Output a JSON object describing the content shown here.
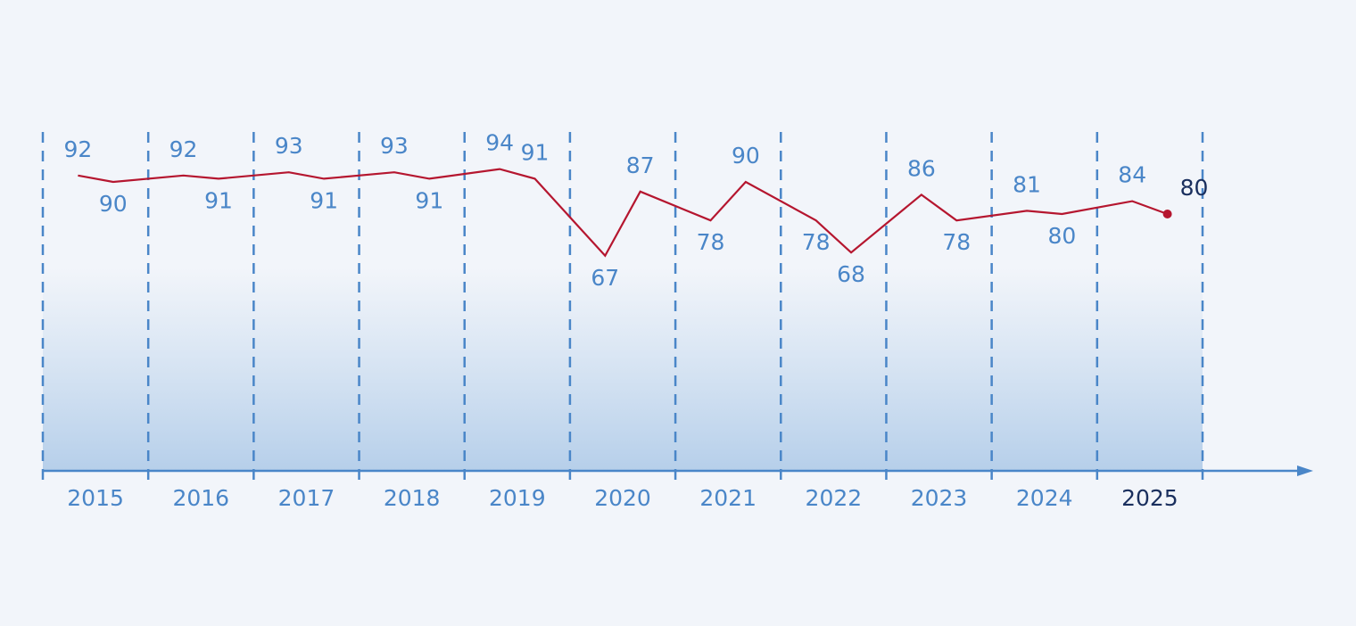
{
  "chart_data": {
    "type": "line",
    "categories": [
      "2015",
      "2016",
      "2017",
      "2018",
      "2019",
      "2020",
      "2021",
      "2022",
      "2023",
      "2024",
      "2025"
    ],
    "values": [
      [
        92,
        90
      ],
      [
        92,
        91
      ],
      [
        93,
        91
      ],
      [
        93,
        91
      ],
      [
        94,
        91
      ],
      [
        67,
        87
      ],
      [
        78,
        90
      ],
      [
        78,
        68
      ],
      [
        86,
        78
      ],
      [
        81,
        80
      ],
      [
        84,
        80
      ]
    ],
    "ylim": [
      0,
      105
    ],
    "color": "#b5162f",
    "label_color": "#4a86c8",
    "highlight_color": "#1a2f5e"
  }
}
